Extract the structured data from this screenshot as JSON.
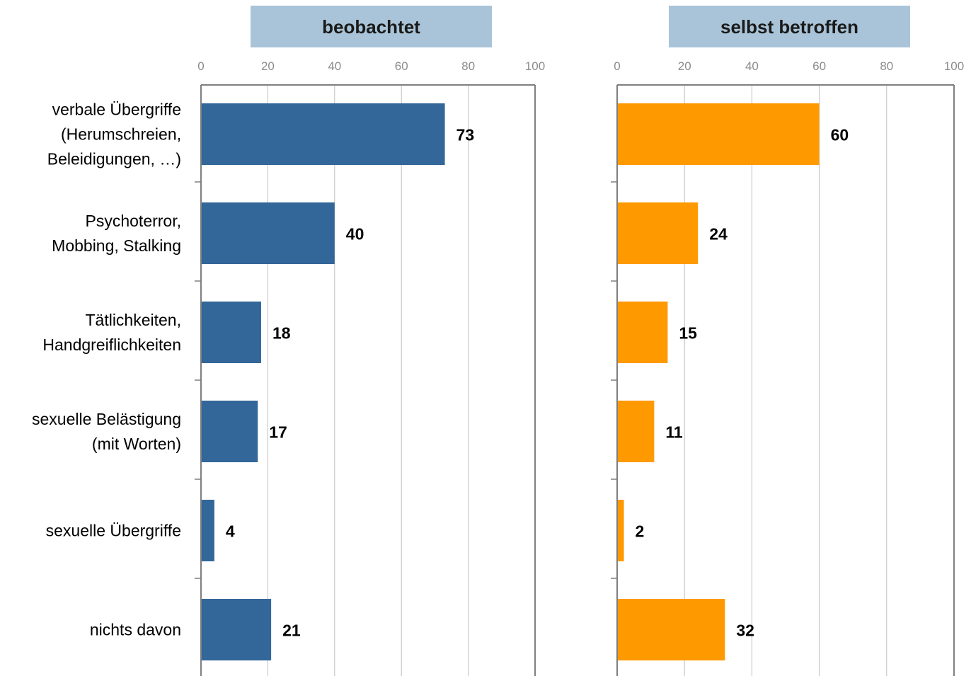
{
  "categories": [
    [
      "verbale Übergriffe",
      "(Herumschreien,",
      "Beleidigungen, …)"
    ],
    [
      "Psychoterror,",
      "Mobbing, Stalking"
    ],
    [
      "Tätlichkeiten,",
      "Handgreiflichkeiten"
    ],
    [
      "sexuelle Belästigung",
      "(mit Worten)"
    ],
    [
      "sexuelle Übergriffe"
    ],
    [
      "nichts davon"
    ]
  ],
  "chart_data": [
    {
      "type": "bar",
      "orientation": "horizontal",
      "title": "beobachtet",
      "categories": [
        "verbale Übergriffe (Herumschreien, Beleidigungen, …)",
        "Psychoterror, Mobbing, Stalking",
        "Tätlichkeiten, Handgreiflichkeiten",
        "sexuelle Belästigung (mit Worten)",
        "sexuelle Übergriffe",
        "nichts davon"
      ],
      "values": [
        73,
        40,
        18,
        17,
        4,
        21
      ],
      "xlim": [
        0,
        100
      ],
      "ticks": [
        0,
        20,
        40,
        60,
        80,
        100
      ],
      "grid": true,
      "color": "#336699"
    },
    {
      "type": "bar",
      "orientation": "horizontal",
      "title": "selbst betroffen",
      "categories": [
        "verbale Übergriffe (Herumschreien, Beleidigungen, …)",
        "Psychoterror, Mobbing, Stalking",
        "Tätlichkeiten, Handgreiflichkeiten",
        "sexuelle Belästigung (mit Worten)",
        "sexuelle Übergriffe",
        "nichts davon"
      ],
      "values": [
        60,
        24,
        15,
        11,
        2,
        32
      ],
      "xlim": [
        0,
        100
      ],
      "ticks": [
        0,
        20,
        40,
        60,
        80,
        100
      ],
      "grid": true,
      "color": "#ff9900"
    }
  ],
  "colors": {
    "title_box": "#a9c4d8",
    "axis": "#7f7f7f",
    "grid": "#bfbfbf",
    "tick_text": "#8c8c8c"
  }
}
